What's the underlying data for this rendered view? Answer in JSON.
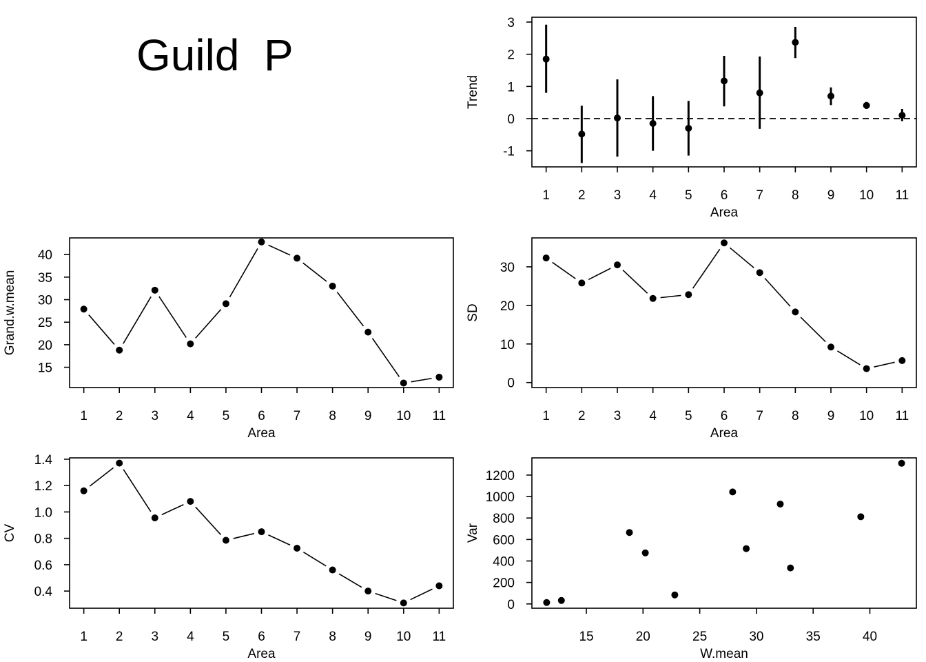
{
  "page_title": "Guild  P",
  "chart_data": [
    {
      "id": "trend",
      "type": "errorbar",
      "xlabel": "Area",
      "ylabel": "Trend",
      "x": [
        1,
        2,
        3,
        4,
        5,
        6,
        7,
        8,
        9,
        10,
        11
      ],
      "values": [
        1.85,
        -0.48,
        0.02,
        -0.15,
        -0.3,
        1.17,
        0.8,
        2.37,
        0.7,
        0.41,
        0.1
      ],
      "lower": [
        0.8,
        -1.38,
        -1.18,
        -1.0,
        -1.15,
        0.38,
        -0.32,
        1.88,
        0.42,
        0.3,
        -0.08
      ],
      "upper": [
        2.92,
        0.4,
        1.22,
        0.7,
        0.55,
        1.95,
        1.93,
        2.85,
        0.97,
        0.52,
        0.3
      ],
      "xlim": [
        0.6,
        11.4
      ],
      "ylim": [
        -1.5,
        3.15
      ],
      "xticks": [
        "1",
        "2",
        "3",
        "4",
        "5",
        "6",
        "7",
        "8",
        "9",
        "10",
        "11"
      ],
      "yticks": [
        -1,
        0,
        1,
        2,
        3
      ],
      "hline": 0
    },
    {
      "id": "grand-w-mean",
      "type": "line",
      "xlabel": "Area",
      "ylabel": "Grand.w.mean",
      "x": [
        1,
        2,
        3,
        4,
        5,
        6,
        7,
        8,
        9,
        10,
        11
      ],
      "values": [
        27.9,
        18.8,
        32.1,
        20.2,
        29.1,
        42.8,
        39.2,
        33.0,
        22.8,
        11.5,
        12.8
      ],
      "xlim": [
        0.6,
        11.4
      ],
      "ylim": [
        10.5,
        43.7
      ],
      "xticks": [
        "1",
        "2",
        "3",
        "4",
        "5",
        "6",
        "7",
        "8",
        "9",
        "10",
        "11"
      ],
      "yticks": [
        15,
        20,
        25,
        30,
        35,
        40
      ]
    },
    {
      "id": "sd",
      "type": "line",
      "xlabel": "Area",
      "ylabel": "SD",
      "x": [
        1,
        2,
        3,
        4,
        5,
        6,
        7,
        8,
        9,
        10,
        11
      ],
      "values": [
        32.3,
        25.8,
        30.5,
        21.8,
        22.8,
        36.2,
        28.5,
        18.3,
        9.2,
        3.6,
        5.7
      ],
      "xlim": [
        0.6,
        11.4
      ],
      "ylim": [
        -1.3,
        37.5
      ],
      "xticks": [
        "1",
        "2",
        "3",
        "4",
        "5",
        "6",
        "7",
        "8",
        "9",
        "10",
        "11"
      ],
      "yticks": [
        0,
        10,
        20,
        30
      ]
    },
    {
      "id": "cv",
      "type": "line",
      "xlabel": "Area",
      "ylabel": "CV",
      "x": [
        1,
        2,
        3,
        4,
        5,
        6,
        7,
        8,
        9,
        10,
        11
      ],
      "values": [
        1.16,
        1.37,
        0.955,
        1.08,
        0.785,
        0.85,
        0.725,
        0.56,
        0.4,
        0.31,
        0.44
      ],
      "xlim": [
        0.6,
        11.4
      ],
      "ylim": [
        0.27,
        1.41
      ],
      "xticks": [
        "1",
        "2",
        "3",
        "4",
        "5",
        "6",
        "7",
        "8",
        "9",
        "10",
        "11"
      ],
      "yticks": [
        "0.4",
        "0.6",
        "0.8",
        "1.0",
        "1.2",
        "1.4"
      ]
    },
    {
      "id": "var",
      "type": "scatter",
      "xlabel": "W.mean",
      "ylabel": "Var",
      "x": [
        11.5,
        12.8,
        18.8,
        20.2,
        22.8,
        27.9,
        29.1,
        32.1,
        33.0,
        39.2,
        42.8
      ],
      "values": [
        13,
        32,
        665,
        475,
        84,
        1043,
        515,
        930,
        335,
        812,
        1310
      ],
      "xlim": [
        10.2,
        44.1
      ],
      "ylim": [
        -40,
        1360
      ],
      "xticks": [
        15,
        20,
        25,
        30,
        35,
        40
      ],
      "yticks": [
        0,
        200,
        400,
        600,
        800,
        1000,
        1200
      ]
    }
  ]
}
